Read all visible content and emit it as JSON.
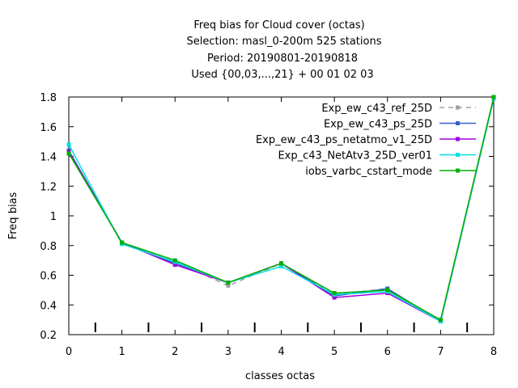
{
  "chart_data": {
    "type": "line",
    "title_lines": [
      "Freq bias  for Cloud cover (octas)",
      "Selection: masl_0-200m    525 stations",
      "Period: 20190801-20190818",
      "Used {00,03,...,21} + 00 01 02 03"
    ],
    "xlabel": "classes octas",
    "ylabel": "Freq bias",
    "xlim": [
      0,
      8
    ],
    "ylim": [
      0.2,
      1.8
    ],
    "xticks": [
      0,
      1,
      2,
      3,
      4,
      5,
      6,
      7,
      8
    ],
    "yticks": [
      0.2,
      0.4,
      0.6,
      0.8,
      1,
      1.2,
      1.4,
      1.6,
      1.8
    ],
    "class_boundary_markers": [
      0.5,
      1.5,
      2.5,
      3.5,
      4.5,
      5.5,
      6.5,
      7.5
    ],
    "x": [
      0,
      1,
      2,
      3,
      4,
      5,
      6,
      7,
      8
    ],
    "series": [
      {
        "name": "Exp_ew_c43_ref_25D",
        "color": "#a0a0a0",
        "dashed": true,
        "values": [
          1.42,
          0.82,
          0.69,
          0.53,
          0.68,
          0.47,
          0.51,
          0.29,
          1.79
        ]
      },
      {
        "name": "Exp_ew_c43_ps_25D",
        "color": "#3a5fcd",
        "dashed": false,
        "values": [
          1.44,
          0.82,
          0.68,
          0.55,
          0.68,
          0.46,
          0.51,
          0.29,
          1.79
        ]
      },
      {
        "name": "Exp_ew_c43_ps_netatmo_v1_25D",
        "color": "#a000e0",
        "dashed": false,
        "values": [
          1.43,
          0.82,
          0.67,
          0.55,
          0.68,
          0.45,
          0.48,
          0.29,
          1.79
        ]
      },
      {
        "name": "Exp_c43_NetAtv3_25D_ver01",
        "color": "#00e0e0",
        "dashed": false,
        "values": [
          1.48,
          0.81,
          0.69,
          0.55,
          0.66,
          0.47,
          0.49,
          0.29,
          1.79
        ]
      },
      {
        "name": "iobs_varbc_cstart_mode",
        "color": "#00b000",
        "dashed": false,
        "values": [
          1.42,
          0.82,
          0.7,
          0.55,
          0.68,
          0.48,
          0.5,
          0.3,
          1.8
        ]
      }
    ],
    "legend_position": "top-right",
    "grid": false
  }
}
